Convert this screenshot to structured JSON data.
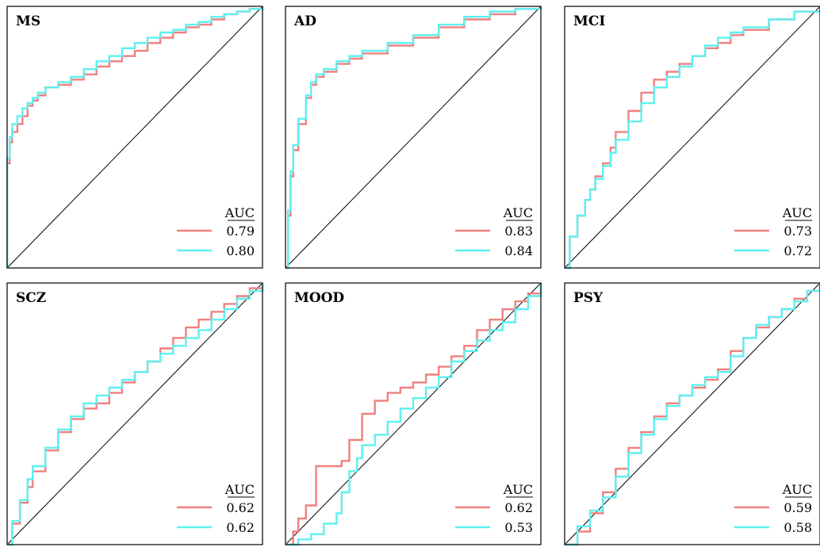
{
  "legend_header": "AUC",
  "colors": {
    "model_a": "#f08080",
    "model_b": "#5ef0f0",
    "frame": "#000000",
    "diagonal": "#000000"
  },
  "chart_data": [
    {
      "type": "line",
      "title": "MS",
      "xlim": [
        0,
        1
      ],
      "ylim": [
        0,
        1
      ],
      "legend": "bottom-right",
      "series": [
        {
          "auc": "0.79",
          "x": [
            0,
            0,
            0.01,
            0.02,
            0.04,
            0.06,
            0.08,
            0.1,
            0.12,
            0.15,
            0.2,
            0.25,
            0.3,
            0.35,
            0.4,
            0.45,
            0.5,
            0.55,
            0.6,
            0.65,
            0.7,
            0.75,
            0.8,
            0.85,
            0.9,
            0.95,
            1
          ],
          "y": [
            0,
            0.4,
            0.48,
            0.52,
            0.55,
            0.58,
            0.62,
            0.64,
            0.66,
            0.69,
            0.7,
            0.72,
            0.74,
            0.77,
            0.79,
            0.81,
            0.83,
            0.86,
            0.88,
            0.9,
            0.92,
            0.93,
            0.95,
            0.97,
            0.98,
            0.99,
            1
          ]
        },
        {
          "auc": "0.80",
          "x": [
            0,
            0,
            0.01,
            0.02,
            0.04,
            0.06,
            0.08,
            0.1,
            0.12,
            0.15,
            0.2,
            0.25,
            0.3,
            0.35,
            0.4,
            0.45,
            0.5,
            0.55,
            0.6,
            0.65,
            0.7,
            0.75,
            0.8,
            0.85,
            0.9,
            0.95,
            1
          ],
          "y": [
            0,
            0.42,
            0.5,
            0.55,
            0.58,
            0.61,
            0.63,
            0.65,
            0.67,
            0.69,
            0.71,
            0.73,
            0.76,
            0.79,
            0.81,
            0.84,
            0.86,
            0.88,
            0.9,
            0.91,
            0.93,
            0.94,
            0.96,
            0.97,
            0.98,
            0.99,
            1
          ]
        }
      ]
    },
    {
      "type": "line",
      "title": "AD",
      "xlim": [
        0,
        1
      ],
      "ylim": [
        0,
        1
      ],
      "legend": "bottom-right",
      "series": [
        {
          "auc": "0.83",
          "x": [
            0,
            0.01,
            0.02,
            0.03,
            0.05,
            0.08,
            0.1,
            0.12,
            0.15,
            0.2,
            0.25,
            0.3,
            0.4,
            0.5,
            0.6,
            0.7,
            0.8,
            0.9,
            1
          ],
          "y": [
            0,
            0.2,
            0.35,
            0.45,
            0.55,
            0.65,
            0.7,
            0.73,
            0.75,
            0.78,
            0.8,
            0.82,
            0.85,
            0.88,
            0.92,
            0.95,
            0.97,
            0.99,
            1
          ]
        },
        {
          "auc": "0.84",
          "x": [
            0,
            0.01,
            0.02,
            0.03,
            0.05,
            0.08,
            0.1,
            0.12,
            0.15,
            0.2,
            0.25,
            0.3,
            0.4,
            0.5,
            0.6,
            0.7,
            0.8,
            0.9,
            1
          ],
          "y": [
            0,
            0.22,
            0.37,
            0.47,
            0.57,
            0.66,
            0.71,
            0.74,
            0.76,
            0.79,
            0.81,
            0.83,
            0.86,
            0.89,
            0.93,
            0.96,
            0.98,
            0.99,
            1
          ]
        }
      ]
    },
    {
      "type": "line",
      "title": "MCI",
      "xlim": [
        0,
        1
      ],
      "ylim": [
        0,
        1
      ],
      "legend": "bottom-right",
      "series": [
        {
          "auc": "0.73",
          "x": [
            0,
            0.02,
            0.05,
            0.08,
            0.1,
            0.12,
            0.15,
            0.18,
            0.2,
            0.25,
            0.3,
            0.35,
            0.4,
            0.45,
            0.5,
            0.55,
            0.6,
            0.65,
            0.7,
            0.8,
            0.9,
            1
          ],
          "y": [
            0,
            0.12,
            0.2,
            0.26,
            0.3,
            0.35,
            0.4,
            0.46,
            0.52,
            0.6,
            0.67,
            0.72,
            0.75,
            0.78,
            0.81,
            0.84,
            0.86,
            0.89,
            0.91,
            0.95,
            0.98,
            1
          ]
        },
        {
          "auc": "0.72",
          "x": [
            0,
            0.02,
            0.05,
            0.08,
            0.1,
            0.12,
            0.15,
            0.18,
            0.2,
            0.25,
            0.3,
            0.35,
            0.4,
            0.45,
            0.5,
            0.55,
            0.6,
            0.65,
            0.7,
            0.8,
            0.9,
            1
          ],
          "y": [
            0,
            0.12,
            0.2,
            0.26,
            0.3,
            0.34,
            0.39,
            0.44,
            0.49,
            0.56,
            0.63,
            0.69,
            0.73,
            0.77,
            0.81,
            0.85,
            0.88,
            0.9,
            0.92,
            0.95,
            0.98,
            1
          ]
        }
      ]
    },
    {
      "type": "line",
      "title": "SCZ",
      "xlim": [
        0,
        1
      ],
      "ylim": [
        0,
        1
      ],
      "legend": "bottom-right",
      "series": [
        {
          "auc": "0.62",
          "x": [
            0,
            0.02,
            0.05,
            0.08,
            0.1,
            0.15,
            0.2,
            0.25,
            0.3,
            0.35,
            0.4,
            0.45,
            0.5,
            0.55,
            0.6,
            0.65,
            0.7,
            0.75,
            0.8,
            0.85,
            0.9,
            0.95,
            1
          ],
          "y": [
            0,
            0.08,
            0.16,
            0.22,
            0.28,
            0.36,
            0.43,
            0.48,
            0.52,
            0.54,
            0.58,
            0.62,
            0.66,
            0.7,
            0.75,
            0.79,
            0.83,
            0.86,
            0.89,
            0.92,
            0.95,
            0.98,
            1
          ]
        },
        {
          "auc": "0.62",
          "x": [
            0,
            0.02,
            0.05,
            0.08,
            0.1,
            0.15,
            0.2,
            0.25,
            0.3,
            0.35,
            0.4,
            0.45,
            0.5,
            0.55,
            0.6,
            0.65,
            0.7,
            0.75,
            0.8,
            0.85,
            0.9,
            0.95,
            1
          ],
          "y": [
            0,
            0.09,
            0.17,
            0.25,
            0.3,
            0.37,
            0.44,
            0.49,
            0.54,
            0.57,
            0.6,
            0.63,
            0.66,
            0.7,
            0.73,
            0.76,
            0.79,
            0.82,
            0.86,
            0.9,
            0.94,
            0.97,
            1
          ]
        }
      ]
    },
    {
      "type": "line",
      "title": "MOOD",
      "xlim": [
        0,
        1
      ],
      "ylim": [
        0,
        1
      ],
      "legend": "bottom-right",
      "series": [
        {
          "auc": "0.62",
          "x": [
            0,
            0.03,
            0.05,
            0.08,
            0.12,
            0.12,
            0.2,
            0.22,
            0.25,
            0.3,
            0.35,
            0.4,
            0.45,
            0.5,
            0.55,
            0.6,
            0.65,
            0.7,
            0.75,
            0.8,
            0.85,
            0.9,
            0.95,
            1
          ],
          "y": [
            0,
            0.05,
            0.1,
            0.15,
            0.2,
            0.3,
            0.3,
            0.32,
            0.4,
            0.5,
            0.55,
            0.58,
            0.6,
            0.62,
            0.65,
            0.68,
            0.72,
            0.76,
            0.82,
            0.86,
            0.9,
            0.93,
            0.96,
            1
          ]
        },
        {
          "auc": "0.53",
          "x": [
            0,
            0.05,
            0.1,
            0.15,
            0.2,
            0.22,
            0.25,
            0.28,
            0.3,
            0.35,
            0.4,
            0.45,
            0.5,
            0.55,
            0.6,
            0.65,
            0.7,
            0.75,
            0.8,
            0.85,
            0.9,
            0.95,
            1
          ],
          "y": [
            0,
            0.02,
            0.04,
            0.08,
            0.12,
            0.2,
            0.28,
            0.33,
            0.38,
            0.42,
            0.47,
            0.52,
            0.56,
            0.6,
            0.64,
            0.7,
            0.74,
            0.78,
            0.82,
            0.85,
            0.9,
            0.95,
            1
          ]
        }
      ]
    },
    {
      "type": "line",
      "title": "PSY",
      "xlim": [
        0,
        1
      ],
      "ylim": [
        0,
        1
      ],
      "legend": "bottom-right",
      "series": [
        {
          "auc": "0.59",
          "x": [
            0,
            0.05,
            0.1,
            0.15,
            0.2,
            0.25,
            0.3,
            0.35,
            0.4,
            0.45,
            0.5,
            0.55,
            0.6,
            0.65,
            0.7,
            0.75,
            0.8,
            0.85,
            0.9,
            0.95,
            1
          ],
          "y": [
            0,
            0.05,
            0.12,
            0.2,
            0.29,
            0.37,
            0.43,
            0.49,
            0.54,
            0.57,
            0.6,
            0.63,
            0.67,
            0.74,
            0.79,
            0.83,
            0.87,
            0.9,
            0.94,
            0.97,
            1
          ]
        },
        {
          "auc": "0.58",
          "x": [
            0,
            0.05,
            0.1,
            0.15,
            0.2,
            0.25,
            0.3,
            0.35,
            0.4,
            0.45,
            0.5,
            0.55,
            0.6,
            0.65,
            0.7,
            0.75,
            0.8,
            0.85,
            0.9,
            0.95,
            1
          ],
          "y": [
            0,
            0.07,
            0.13,
            0.18,
            0.26,
            0.35,
            0.42,
            0.48,
            0.53,
            0.57,
            0.61,
            0.64,
            0.66,
            0.72,
            0.79,
            0.84,
            0.87,
            0.9,
            0.93,
            0.97,
            1
          ]
        }
      ]
    }
  ]
}
